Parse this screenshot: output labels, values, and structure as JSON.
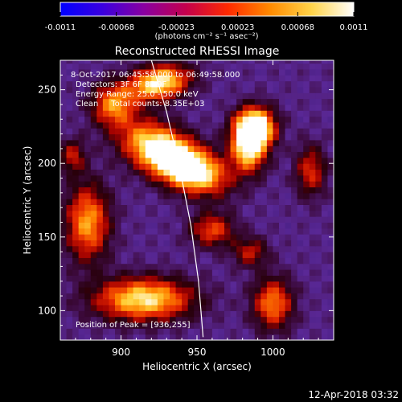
{
  "colorbar": {
    "tick_labels": [
      "-0.0011",
      "-0.00068",
      "-0.00023",
      "0.00023",
      "0.00068",
      "0.0011"
    ],
    "tick_values": [
      -0.0011,
      -0.00068,
      -0.00023,
      0.00023,
      0.00068,
      0.0011
    ],
    "range": [
      -0.0011,
      0.0011
    ],
    "unit": "(photons cm⁻² s⁻¹ asec⁻²)",
    "colormap": [
      "#0000ff",
      "#3a00e0",
      "#8a00a0",
      "#c4004c",
      "#ff2a00",
      "#ff8a00",
      "#ffd44a",
      "#ffffff"
    ]
  },
  "chart_data": {
    "type": "heatmap",
    "title": "Reconstructed RHESSI Image",
    "xlabel": "Heliocentric X (arcsec)",
    "ylabel": "Heliocentric Y (arcsec)",
    "xlim": [
      860,
      1040
    ],
    "ylim": [
      80,
      270
    ],
    "xticks": [
      900,
      950,
      1000
    ],
    "yticks": [
      100,
      150,
      200,
      250
    ],
    "info": [
      "8-Oct-2017 06:45:58.000 to 06:49:58.000",
      "Detectors: 3F 6F 8F 9F",
      "Energy Range: 25.0 - 50.0 keV",
      "Clean     Total counts: 8.35E+03"
    ],
    "peak_label": "Position of Peak = [936,255]",
    "peak_position": [
      936,
      255
    ],
    "limb_points": [
      [
        920,
        270
      ],
      [
        930,
        235
      ],
      [
        939,
        195
      ],
      [
        946,
        158
      ],
      [
        951,
        120
      ],
      [
        954,
        82
      ]
    ],
    "sources": [
      {
        "x": 925,
        "y": 210,
        "sx": 18,
        "sy": 11,
        "amp": 0.85,
        "theta": -0.45
      },
      {
        "x": 948,
        "y": 195,
        "sx": 16,
        "sy": 10,
        "amp": 0.8,
        "theta": -0.35
      },
      {
        "x": 988,
        "y": 225,
        "sx": 9,
        "sy": 9,
        "amp": 1.0,
        "theta": 0
      },
      {
        "x": 984,
        "y": 210,
        "sx": 8,
        "sy": 11,
        "amp": 0.75,
        "theta": 0
      },
      {
        "x": 925,
        "y": 255,
        "sx": 14,
        "sy": 8,
        "amp": 0.8,
        "theta": 0.2
      },
      {
        "x": 895,
        "y": 240,
        "sx": 10,
        "sy": 10,
        "amp": 0.55,
        "theta": 0
      },
      {
        "x": 915,
        "y": 108,
        "sx": 22,
        "sy": 10,
        "amp": 0.75,
        "theta": 0
      },
      {
        "x": 878,
        "y": 160,
        "sx": 10,
        "sy": 18,
        "amp": 0.6,
        "theta": 0
      },
      {
        "x": 1000,
        "y": 105,
        "sx": 9,
        "sy": 12,
        "amp": 0.55,
        "theta": 0
      },
      {
        "x": 1025,
        "y": 195,
        "sx": 7,
        "sy": 12,
        "amp": 0.4,
        "theta": 0
      },
      {
        "x": 960,
        "y": 155,
        "sx": 10,
        "sy": 8,
        "amp": 0.45,
        "theta": 0
      },
      {
        "x": 985,
        "y": 140,
        "sx": 8,
        "sy": 7,
        "amp": 0.35,
        "theta": 0
      },
      {
        "x": 868,
        "y": 205,
        "sx": 6,
        "sy": 8,
        "amp": 0.35,
        "theta": 0
      }
    ]
  },
  "footer": {
    "timestamp": "12-Apr-2018 03:32"
  }
}
